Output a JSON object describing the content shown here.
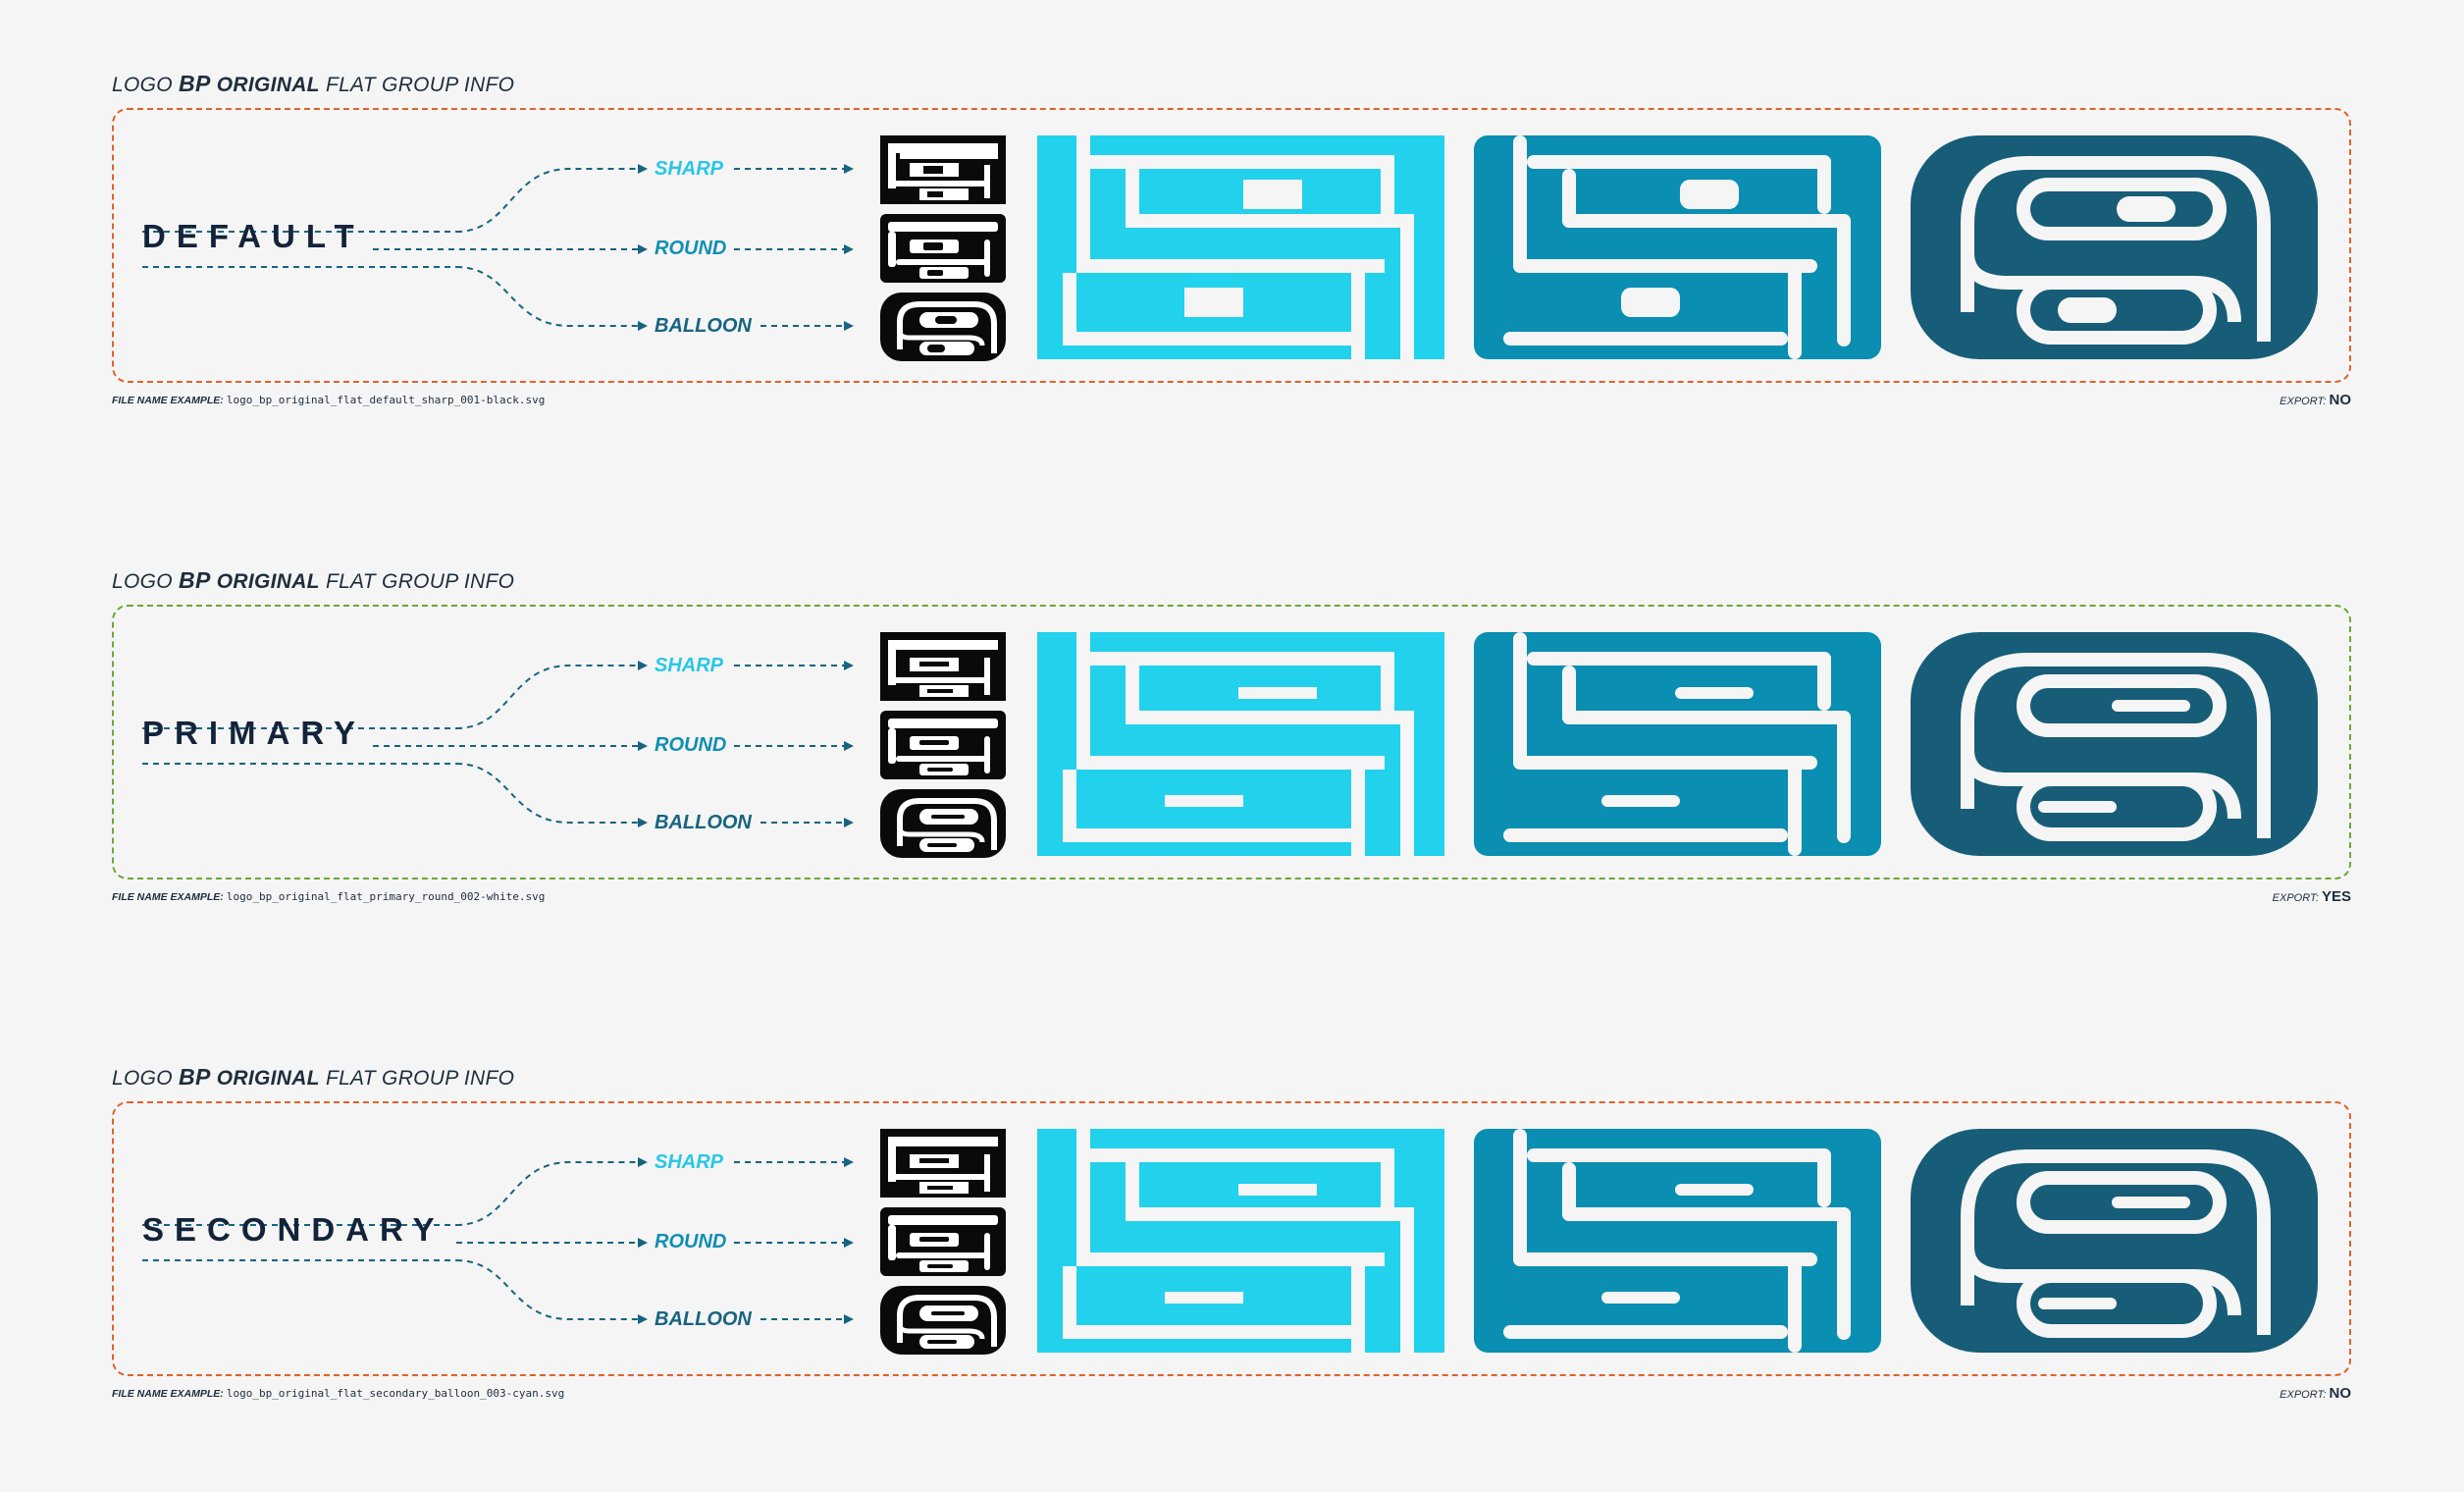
{
  "groups": [
    {
      "title_prefix": "LOGO",
      "title_bp": "BP",
      "title_original": "ORIGINAL",
      "title_suffix": "FLAT GROUP INFO",
      "variant": "DEFAULT",
      "styles": [
        "SHARP",
        "ROUND",
        "BALLOON"
      ],
      "filename_label": "FILE NAME EXAMPLE:",
      "filename": "logo_bp_original_flat_default_sharp_001-black.svg",
      "export_label": "EXPORT:",
      "export_value": "NO",
      "frame_color": "#e0622b"
    },
    {
      "title_prefix": "LOGO",
      "title_bp": "BP",
      "title_original": "ORIGINAL",
      "title_suffix": "FLAT GROUP INFO",
      "variant": "PRIMARY",
      "styles": [
        "SHARP",
        "ROUND",
        "BALLOON"
      ],
      "filename_label": "FILE NAME EXAMPLE:",
      "filename": "logo_bp_original_flat_primary_round_002-white.svg",
      "export_label": "EXPORT:",
      "export_value": "YES",
      "frame_color": "#6aa836"
    },
    {
      "title_prefix": "LOGO",
      "title_bp": "BP",
      "title_original": "ORIGINAL",
      "title_suffix": "FLAT GROUP INFO",
      "variant": "SECONDARY",
      "styles": [
        "SHARP",
        "ROUND",
        "BALLOON"
      ],
      "filename_label": "FILE NAME EXAMPLE:",
      "filename": "logo_bp_original_flat_secondary_balloon_003-cyan.svg",
      "export_label": "EXPORT:",
      "export_value": "NO",
      "frame_color": "#e0622b"
    }
  ],
  "colors": {
    "background": "#f5f5f5",
    "cyan": "#22d1ec",
    "teal": "#0a8eb2",
    "navy": "#175d78",
    "black": "#0a0a0a",
    "label_dark": "#13243a"
  }
}
